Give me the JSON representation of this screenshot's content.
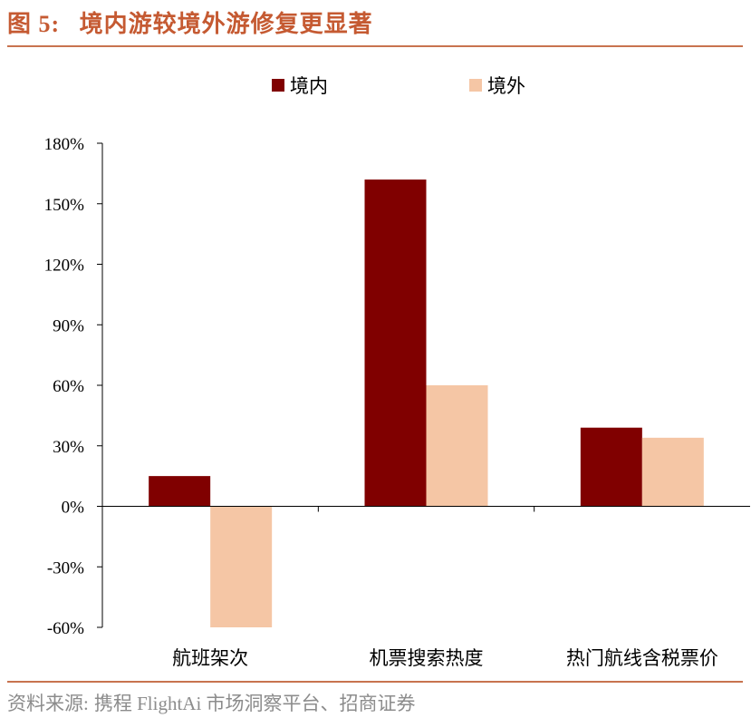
{
  "figure": {
    "title_prefix": "图 5:",
    "title_text": "境内游较境外游修复更显著"
  },
  "source": {
    "label": "资料来源:",
    "text": "携程 FlightAi 市场洞察平台、招商证券"
  },
  "colors": {
    "series_domestic": "#800000",
    "series_outbound": "#f5c6a5",
    "rule": "#c8734f",
    "title": "#c55a32"
  },
  "chart_data": {
    "type": "bar",
    "categories": [
      "航班架次",
      "机票搜索热度",
      "热门航线含税票价"
    ],
    "series": [
      {
        "name": "境内",
        "values": [
          15,
          162,
          39
        ]
      },
      {
        "name": "境外",
        "values": [
          -60,
          60,
          34
        ]
      }
    ],
    "ylim": [
      -60,
      180
    ],
    "yticks": [
      -60,
      -30,
      0,
      30,
      60,
      90,
      120,
      150,
      180
    ],
    "ytick_labels": [
      "-60%",
      "-30%",
      "0%",
      "30%",
      "60%",
      "90%",
      "120%",
      "150%",
      "180%"
    ],
    "legend_position": "top-center",
    "grid": false,
    "title": "",
    "xlabel": "",
    "ylabel": ""
  }
}
